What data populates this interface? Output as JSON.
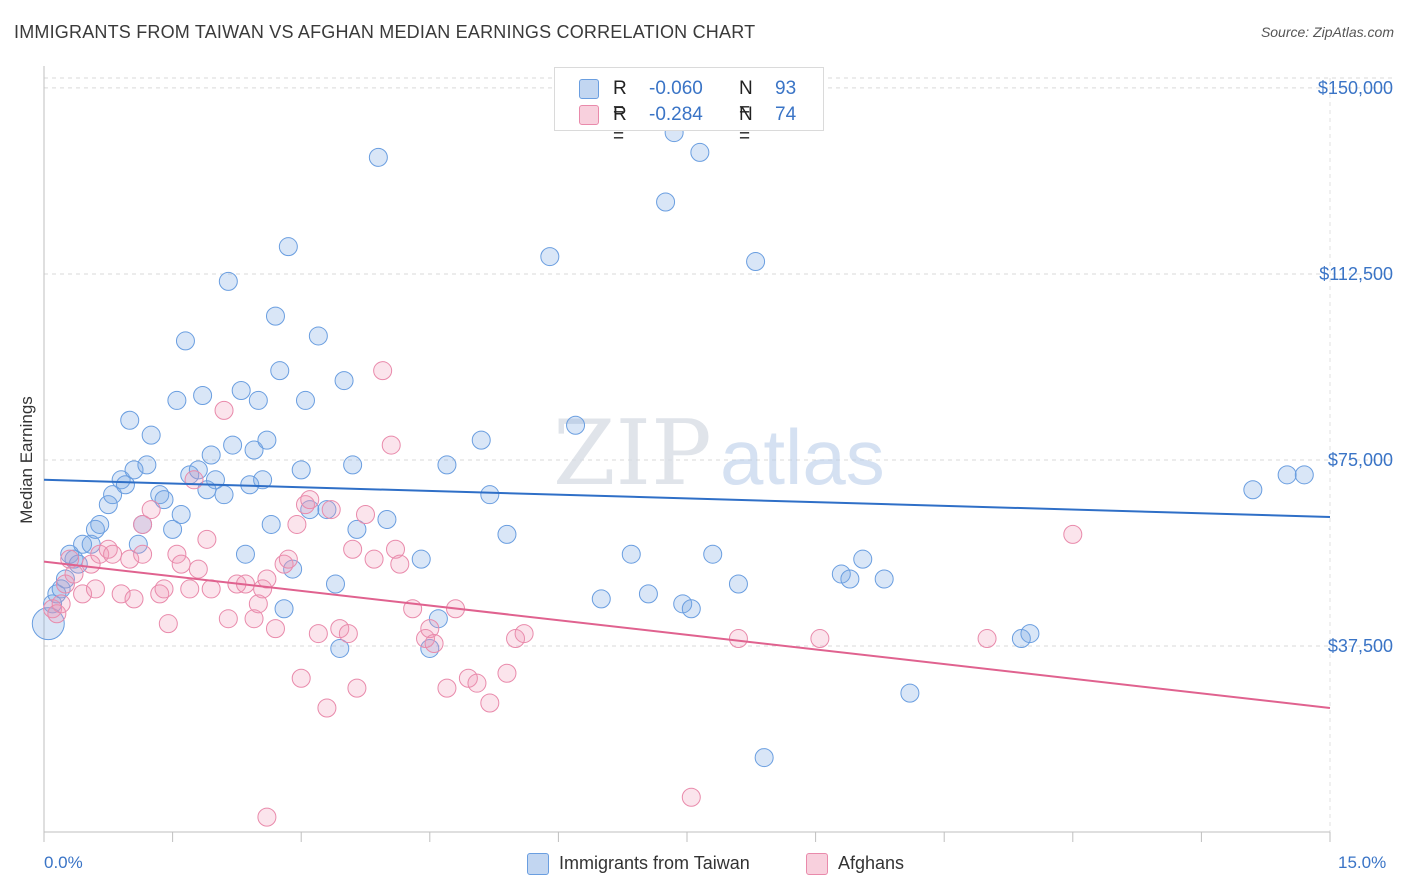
{
  "title": "IMMIGRANTS FROM TAIWAN VS AFGHAN MEDIAN EARNINGS CORRELATION CHART",
  "source": "Source: ZipAtlas.com",
  "watermark": {
    "zip": "ZIP",
    "atlas": "atlas"
  },
  "legend": {
    "r_label": "R =",
    "n_label": "N =",
    "rows": [
      {
        "r": "-0.060",
        "n": "93"
      },
      {
        "r": "-0.284",
        "n": "74"
      }
    ]
  },
  "chart_data": {
    "type": "scatter",
    "title": "IMMIGRANTS FROM TAIWAN VS AFGHAN MEDIAN EARNINGS CORRELATION CHART",
    "xlabel": "",
    "ylabel": "Median Earnings",
    "xlim": [
      0,
      15
    ],
    "ylim": [
      0,
      152000
    ],
    "x_tick_labels": [
      "0.0%",
      "15.0%"
    ],
    "y_ticks": [
      37500,
      75000,
      112500,
      150000
    ],
    "y_tick_labels": [
      "$37,500",
      "$75,000",
      "$112,500",
      "$150,000"
    ],
    "grid": true,
    "legend_position": "top-center",
    "series": [
      {
        "name": "Immigrants from Taiwan",
        "color": "#6a9ee0",
        "fill": "rgba(120,165,225,0.28)",
        "trend": {
          "x": [
            0,
            15
          ],
          "y": [
            71000,
            63500
          ]
        },
        "points": [
          [
            0.05,
            42000
          ],
          [
            0.1,
            46000
          ],
          [
            0.15,
            48000
          ],
          [
            0.2,
            49000
          ],
          [
            0.25,
            51000
          ],
          [
            0.3,
            56000
          ],
          [
            0.35,
            55000
          ],
          [
            0.45,
            58000
          ],
          [
            0.55,
            58000
          ],
          [
            0.6,
            61000
          ],
          [
            0.65,
            62000
          ],
          [
            0.75,
            66000
          ],
          [
            0.8,
            68000
          ],
          [
            0.9,
            71000
          ],
          [
            0.95,
            70000
          ],
          [
            1.0,
            83000
          ],
          [
            1.05,
            73000
          ],
          [
            1.1,
            58000
          ],
          [
            1.15,
            62000
          ],
          [
            1.2,
            74000
          ],
          [
            1.25,
            80000
          ],
          [
            1.35,
            68000
          ],
          [
            1.4,
            67000
          ],
          [
            1.5,
            61000
          ],
          [
            1.55,
            87000
          ],
          [
            1.6,
            64000
          ],
          [
            1.65,
            99000
          ],
          [
            1.7,
            72000
          ],
          [
            1.8,
            73000
          ],
          [
            1.85,
            88000
          ],
          [
            1.9,
            69000
          ],
          [
            1.95,
            76000
          ],
          [
            2.0,
            71000
          ],
          [
            2.1,
            68000
          ],
          [
            2.15,
            111000
          ],
          [
            2.2,
            78000
          ],
          [
            2.3,
            89000
          ],
          [
            2.35,
            56000
          ],
          [
            2.4,
            70000
          ],
          [
            2.45,
            77000
          ],
          [
            2.5,
            87000
          ],
          [
            2.55,
            71000
          ],
          [
            2.6,
            79000
          ],
          [
            2.65,
            62000
          ],
          [
            2.7,
            104000
          ],
          [
            2.75,
            93000
          ],
          [
            2.8,
            45000
          ],
          [
            2.85,
            118000
          ],
          [
            2.9,
            53000
          ],
          [
            3.0,
            73000
          ],
          [
            3.05,
            87000
          ],
          [
            3.1,
            65000
          ],
          [
            3.2,
            100000
          ],
          [
            3.3,
            65000
          ],
          [
            3.4,
            50000
          ],
          [
            3.45,
            37000
          ],
          [
            3.5,
            91000
          ],
          [
            3.6,
            74000
          ],
          [
            3.65,
            61000
          ],
          [
            3.9,
            136000
          ],
          [
            4.0,
            63000
          ],
          [
            4.4,
            55000
          ],
          [
            4.5,
            37000
          ],
          [
            4.6,
            43000
          ],
          [
            4.7,
            74000
          ],
          [
            5.1,
            79000
          ],
          [
            5.2,
            68000
          ],
          [
            5.4,
            60000
          ],
          [
            5.9,
            116000
          ],
          [
            6.2,
            82000
          ],
          [
            6.5,
            47000
          ],
          [
            6.85,
            56000
          ],
          [
            7.05,
            48000
          ],
          [
            7.25,
            127000
          ],
          [
            7.35,
            141000
          ],
          [
            7.45,
            46000
          ],
          [
            7.55,
            45000
          ],
          [
            7.65,
            137000
          ],
          [
            7.8,
            56000
          ],
          [
            8.1,
            50000
          ],
          [
            8.3,
            115000
          ],
          [
            8.4,
            15000
          ],
          [
            9.3,
            52000
          ],
          [
            9.4,
            51000
          ],
          [
            9.55,
            55000
          ],
          [
            9.8,
            51000
          ],
          [
            10.1,
            28000
          ],
          [
            11.4,
            39000
          ],
          [
            11.5,
            40000
          ],
          [
            14.1,
            69000
          ],
          [
            14.5,
            72000
          ],
          [
            14.7,
            72000
          ],
          [
            0.4,
            54000
          ]
        ]
      },
      {
        "name": "Afghans",
        "color": "#e98aab",
        "fill": "rgba(240,150,180,0.26)",
        "trend": {
          "x": [
            0,
            15
          ],
          "y": [
            54500,
            25000
          ]
        },
        "points": [
          [
            0.1,
            45000
          ],
          [
            0.15,
            44000
          ],
          [
            0.25,
            50000
          ],
          [
            0.3,
            55000
          ],
          [
            0.35,
            52000
          ],
          [
            0.45,
            48000
          ],
          [
            0.55,
            54000
          ],
          [
            0.65,
            56000
          ],
          [
            0.75,
            57000
          ],
          [
            0.8,
            56000
          ],
          [
            0.9,
            48000
          ],
          [
            1.0,
            55000
          ],
          [
            1.05,
            47000
          ],
          [
            1.15,
            62000
          ],
          [
            1.25,
            65000
          ],
          [
            1.35,
            48000
          ],
          [
            1.45,
            42000
          ],
          [
            1.55,
            56000
          ],
          [
            1.6,
            54000
          ],
          [
            1.7,
            49000
          ],
          [
            1.75,
            71000
          ],
          [
            1.8,
            53000
          ],
          [
            1.9,
            59000
          ],
          [
            1.95,
            49000
          ],
          [
            2.1,
            85000
          ],
          [
            2.15,
            43000
          ],
          [
            2.25,
            50000
          ],
          [
            2.35,
            50000
          ],
          [
            2.45,
            43000
          ],
          [
            2.5,
            46000
          ],
          [
            2.55,
            49000
          ],
          [
            2.6,
            51000
          ],
          [
            2.7,
            41000
          ],
          [
            2.8,
            54000
          ],
          [
            2.85,
            55000
          ],
          [
            2.95,
            62000
          ],
          [
            3.0,
            31000
          ],
          [
            3.05,
            66000
          ],
          [
            3.1,
            67000
          ],
          [
            3.2,
            40000
          ],
          [
            3.3,
            25000
          ],
          [
            3.35,
            65000
          ],
          [
            3.45,
            41000
          ],
          [
            3.55,
            40000
          ],
          [
            3.6,
            57000
          ],
          [
            3.65,
            29000
          ],
          [
            3.75,
            64000
          ],
          [
            3.85,
            55000
          ],
          [
            3.95,
            93000
          ],
          [
            4.05,
            78000
          ],
          [
            4.1,
            57000
          ],
          [
            4.15,
            54000
          ],
          [
            4.3,
            45000
          ],
          [
            4.45,
            39000
          ],
          [
            4.5,
            41000
          ],
          [
            4.55,
            38000
          ],
          [
            4.7,
            29000
          ],
          [
            4.8,
            45000
          ],
          [
            4.95,
            31000
          ],
          [
            5.05,
            30000
          ],
          [
            5.2,
            26000
          ],
          [
            5.4,
            32000
          ],
          [
            5.5,
            39000
          ],
          [
            5.6,
            40000
          ],
          [
            7.55,
            7000
          ],
          [
            8.1,
            39000
          ],
          [
            9.05,
            39000
          ],
          [
            11.0,
            39000
          ],
          [
            12.0,
            60000
          ],
          [
            2.6,
            3000
          ],
          [
            1.15,
            56000
          ],
          [
            0.2,
            46000
          ],
          [
            1.4,
            49000
          ],
          [
            0.6,
            49000
          ]
        ]
      }
    ]
  }
}
